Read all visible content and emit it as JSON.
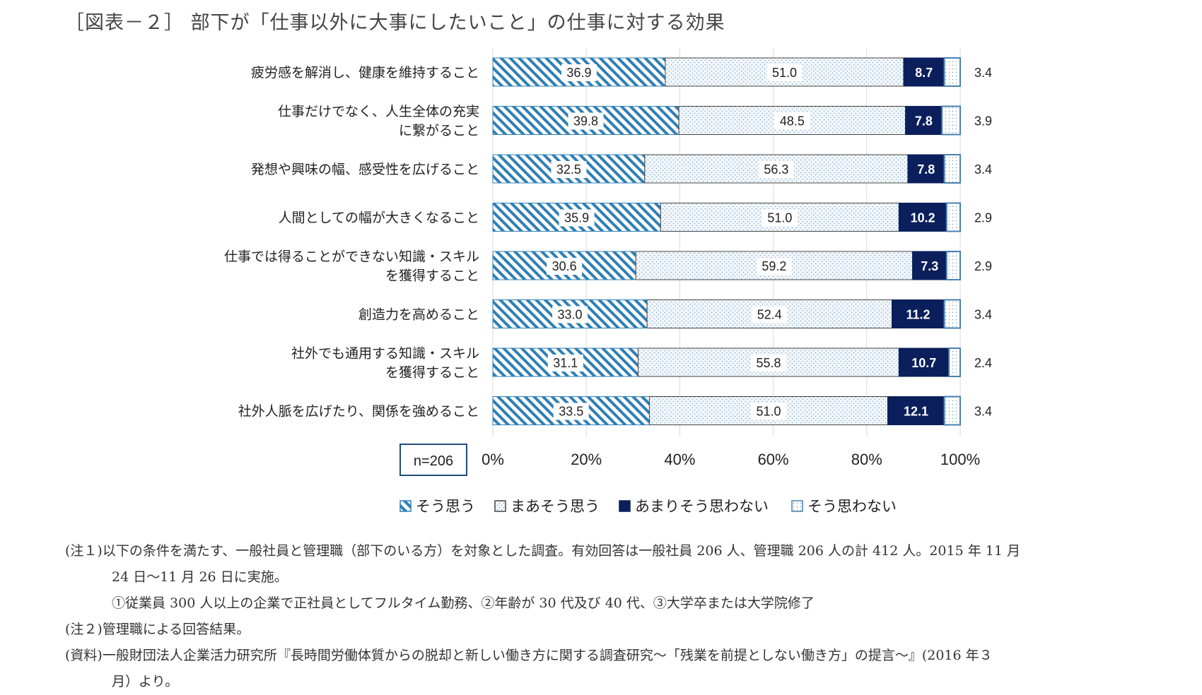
{
  "title": "［図表－２］ 部下が「仕事以外に大事にしたいこと」の仕事に対する効果",
  "n_label": "n=206",
  "colors": {
    "sou_omou": "#2f7fb5",
    "maa": "#c9d8e8",
    "amari": "#0b1f5c",
    "omowanai": "#4a80b0"
  },
  "chart_data": {
    "type": "bar",
    "orientation": "horizontal",
    "stacked": true,
    "categories": [
      [
        "疲労感を解消し、健康を維持すること"
      ],
      [
        "仕事だけでなく、人生全体の充実",
        "に繋がること"
      ],
      [
        "発想や興味の幅、感受性を広げること"
      ],
      [
        "人間としての幅が大きくなること"
      ],
      [
        "仕事では得ることができない知識・スキル",
        "を獲得すること"
      ],
      [
        "創造力を高めること"
      ],
      [
        "社外でも通用する知識・スキル",
        "を獲得すること"
      ],
      [
        "社外人脈を広げたり、関係を強めること"
      ]
    ],
    "series": [
      {
        "name": "そう思う",
        "values": [
          36.9,
          39.8,
          32.5,
          35.9,
          30.6,
          33.0,
          31.1,
          33.5
        ]
      },
      {
        "name": "まあそう思う",
        "values": [
          51.0,
          48.5,
          56.3,
          51.0,
          59.2,
          52.4,
          55.8,
          51.0
        ]
      },
      {
        "name": "あまりそう思わない",
        "values": [
          8.7,
          7.8,
          7.8,
          10.2,
          7.3,
          11.2,
          10.7,
          12.1
        ]
      },
      {
        "name": "そう思わない",
        "values": [
          3.4,
          3.9,
          3.4,
          2.9,
          2.9,
          3.4,
          2.4,
          3.4
        ]
      }
    ],
    "value_labels": [
      [
        "36.9",
        "39.8",
        "32.5",
        "35.9",
        "30.6",
        "33.0",
        "31.1",
        "33.5"
      ],
      [
        "51.0",
        "48.5",
        "56.3",
        "51.0",
        "59.2",
        "52.4",
        "55.8",
        "51.0"
      ],
      [
        "8.7",
        "7.8",
        "7.8",
        "10.2",
        "7.3",
        "11.2",
        "10.7",
        "12.1"
      ],
      [
        "3.4",
        "3.9",
        "3.4",
        "2.9",
        "2.9",
        "3.4",
        "2.4",
        "3.4"
      ]
    ],
    "xticks": [
      "0%",
      "20%",
      "40%",
      "60%",
      "80%",
      "100%"
    ],
    "xlim": [
      0,
      100
    ],
    "legend_position": "bottom"
  },
  "notes": [
    "(注１)以下の条件を満たす、一般社員と管理職（部下のいる方）を対象とした調査。有効回答は一般社員 206 人、管理職 206 人の計 412 人。2015 年 11 月",
    "24 日～11 月 26 日に実施。",
    "①従業員 300 人以上の企業で正社員としてフルタイム勤務、②年齢が 30 代及び 40 代、③大学卒または大学院修了",
    "(注２)管理職による回答結果。",
    "(資料)一般財団法人企業活力研究所『長時間労働体質からの脱却と新しい働き方に関する調査研究～「残業を前提としない働き方」の提言～』(2016 年３",
    "月）より。"
  ]
}
